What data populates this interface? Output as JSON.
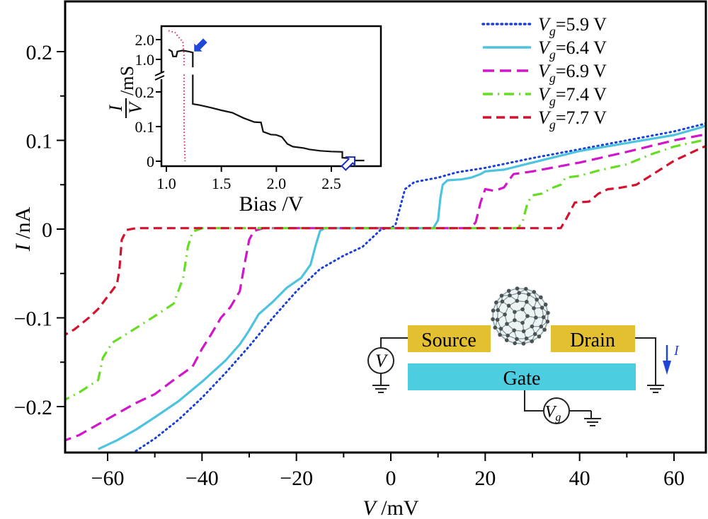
{
  "chart_data": [
    {
      "id": "main",
      "type": "line",
      "title": "",
      "xlabel": "V /mV",
      "ylabel": "I /nA",
      "xlim": [
        -70,
        70
      ],
      "ylim": [
        -0.25,
        0.25
      ],
      "x_ticks": [
        -60,
        -40,
        -20,
        0,
        20,
        40,
        60
      ],
      "x_tick_labels": [
        "−60",
        "−40",
        "−20",
        "0",
        "20",
        "40",
        "60"
      ],
      "x_minor_ticks": [
        -50,
        -30,
        -10,
        10,
        30,
        50
      ],
      "y_ticks": [
        -0.2,
        -0.1,
        0,
        0.1,
        0.2
      ],
      "y_tick_labels": [
        "−0.2",
        "−0.1",
        "0",
        "0.1",
        "0.2"
      ],
      "y_minor_ticks": [
        -0.15,
        -0.05,
        0.05,
        0.15
      ],
      "grid": false,
      "legend_position": "top-right",
      "series": [
        {
          "name": "Vg=5.9 V",
          "label_sub": "g",
          "label_value": "=5.9 V",
          "color": "#1a3fd6",
          "style": "dotted",
          "points": [
            [
              -54,
              -0.25
            ],
            [
              -50,
              -0.236
            ],
            [
              -45,
              -0.215
            ],
            [
              -40,
              -0.19
            ],
            [
              -35,
              -0.162
            ],
            [
              -30,
              -0.132
            ],
            [
              -25,
              -0.1
            ],
            [
              -20,
              -0.07
            ],
            [
              -15,
              -0.045
            ],
            [
              -10,
              -0.03
            ],
            [
              -6,
              -0.02
            ],
            [
              -4,
              -0.01
            ],
            [
              -2,
              0
            ],
            [
              0,
              0.001
            ],
            [
              1,
              0.005
            ],
            [
              2,
              0.025
            ],
            [
              3,
              0.045
            ],
            [
              5,
              0.053
            ],
            [
              8,
              0.056
            ],
            [
              10,
              0.058
            ],
            [
              14,
              0.064
            ],
            [
              20,
              0.069
            ],
            [
              30,
              0.08
            ],
            [
              40,
              0.09
            ],
            [
              50,
              0.1
            ],
            [
              60,
              0.11
            ],
            [
              66,
              0.118
            ],
            [
              70,
              0.125
            ]
          ]
        },
        {
          "name": "Vg=6.4 V",
          "label_sub": "g",
          "label_value": "=6.4 V",
          "color": "#4dc3e0",
          "style": "solid",
          "points": [
            [
              -62,
              -0.248
            ],
            [
              -58,
              -0.238
            ],
            [
              -54,
              -0.226
            ],
            [
              -50,
              -0.212
            ],
            [
              -45,
              -0.194
            ],
            [
              -40,
              -0.172
            ],
            [
              -35,
              -0.148
            ],
            [
              -32,
              -0.13
            ],
            [
              -30,
              -0.114
            ],
            [
              -28,
              -0.096
            ],
            [
              -25,
              -0.082
            ],
            [
              -22,
              -0.066
            ],
            [
              -19,
              -0.055
            ],
            [
              -17,
              -0.04
            ],
            [
              -16,
              -0.02
            ],
            [
              -15,
              -0.002
            ],
            [
              -14,
              0.001
            ],
            [
              -5,
              0.001
            ],
            [
              5,
              0.001
            ],
            [
              9,
              0.001
            ],
            [
              10,
              0.01
            ],
            [
              10.5,
              0.035
            ],
            [
              11,
              0.05
            ],
            [
              12,
              0.055
            ],
            [
              15,
              0.056
            ],
            [
              17,
              0.058
            ],
            [
              19,
              0.062
            ],
            [
              20,
              0.065
            ],
            [
              24,
              0.067
            ],
            [
              30,
              0.075
            ],
            [
              40,
              0.088
            ],
            [
              50,
              0.097
            ],
            [
              60,
              0.106
            ],
            [
              66,
              0.115
            ],
            [
              70,
              0.125
            ]
          ]
        },
        {
          "name": "Vg=6.9 V",
          "label_sub": "g",
          "label_value": "=6.9 V",
          "color": "#d016c8",
          "style": "dashed",
          "points": [
            [
              -70,
              -0.24
            ],
            [
              -66,
              -0.232
            ],
            [
              -62,
              -0.22
            ],
            [
              -58,
              -0.208
            ],
            [
              -54,
              -0.196
            ],
            [
              -50,
              -0.186
            ],
            [
              -46,
              -0.17
            ],
            [
              -42,
              -0.155
            ],
            [
              -40,
              -0.135
            ],
            [
              -38,
              -0.118
            ],
            [
              -36,
              -0.1
            ],
            [
              -34,
              -0.088
            ],
            [
              -32,
              -0.07
            ],
            [
              -31,
              -0.04
            ],
            [
              -30,
              -0.012
            ],
            [
              -29,
              -0.002
            ],
            [
              -27,
              0.001
            ],
            [
              -10,
              0.001
            ],
            [
              10,
              0.001
            ],
            [
              17,
              0.001
            ],
            [
              18,
              0.008
            ],
            [
              19,
              0.03
            ],
            [
              20,
              0.045
            ],
            [
              22,
              0.043
            ],
            [
              24,
              0.047
            ],
            [
              25,
              0.055
            ],
            [
              26,
              0.062
            ],
            [
              30,
              0.065
            ],
            [
              40,
              0.075
            ],
            [
              50,
              0.087
            ],
            [
              60,
              0.1
            ],
            [
              70,
              0.11
            ]
          ]
        },
        {
          "name": "Vg=7.4 V",
          "label_sub": "g",
          "label_value": "=7.4 V",
          "color": "#66dd22",
          "style": "dashdot",
          "points": [
            [
              -70,
              -0.195
            ],
            [
              -66,
              -0.184
            ],
            [
              -62,
              -0.17
            ],
            [
              -61,
              -0.145
            ],
            [
              -59,
              -0.128
            ],
            [
              -55,
              -0.115
            ],
            [
              -50,
              -0.098
            ],
            [
              -46,
              -0.084
            ],
            [
              -44,
              -0.055
            ],
            [
              -43,
              -0.02
            ],
            [
              -42,
              -0.003
            ],
            [
              -40,
              0.001
            ],
            [
              -10,
              0.001
            ],
            [
              20,
              0.001
            ],
            [
              27,
              0.001
            ],
            [
              28,
              0.01
            ],
            [
              29,
              0.03
            ],
            [
              30,
              0.038
            ],
            [
              32,
              0.04
            ],
            [
              34,
              0.046
            ],
            [
              36,
              0.05
            ],
            [
              37,
              0.058
            ],
            [
              40,
              0.06
            ],
            [
              44,
              0.066
            ],
            [
              50,
              0.073
            ],
            [
              55,
              0.084
            ],
            [
              60,
              0.093
            ],
            [
              66,
              0.1
            ],
            [
              70,
              0.106
            ]
          ]
        },
        {
          "name": "Vg=7.7 V",
          "label_sub": "g",
          "label_value": "=7.7 V",
          "color": "#d4122d",
          "style": "dashed-short",
          "points": [
            [
              -70,
              -0.122
            ],
            [
              -67,
              -0.113
            ],
            [
              -64,
              -0.1
            ],
            [
              -62,
              -0.09
            ],
            [
              -60,
              -0.076
            ],
            [
              -58,
              -0.062
            ],
            [
              -57.5,
              -0.045
            ],
            [
              -57,
              -0.012
            ],
            [
              -56,
              -0.001
            ],
            [
              -54,
              0.001
            ],
            [
              -30,
              0.001
            ],
            [
              0,
              0.001
            ],
            [
              20,
              0.001
            ],
            [
              36,
              0.001
            ],
            [
              37,
              0.01
            ],
            [
              38,
              0.02
            ],
            [
              39,
              0.03
            ],
            [
              42,
              0.031
            ],
            [
              44,
              0.04
            ],
            [
              46,
              0.045
            ],
            [
              48,
              0.046
            ],
            [
              52,
              0.05
            ],
            [
              55,
              0.06
            ],
            [
              60,
              0.077
            ],
            [
              66,
              0.092
            ],
            [
              70,
              0.1
            ]
          ]
        }
      ]
    },
    {
      "id": "inset",
      "type": "line",
      "title": "",
      "xlabel": "Bias /V",
      "ylabel": "I/V /mS",
      "ylabel_numerator": "I",
      "ylabel_denominator": "V",
      "ylabel_unit": "/mS",
      "xlim": [
        0.97,
        2.95
      ],
      "x_ticks": [
        1.0,
        1.5,
        2.0,
        2.5
      ],
      "x_tick_labels": [
        "1.0",
        "1.5",
        "2.0",
        "2.5"
      ],
      "y_lower_range": [
        0,
        0.27
      ],
      "y_upper_range": [
        0.5,
        2.6
      ],
      "y_ticks_lower": [
        0,
        0.1,
        0.2
      ],
      "y_tick_labels_lower": [
        "0",
        "0.1",
        "0.2"
      ],
      "y_ticks_upper": [
        1.0,
        2.0
      ],
      "y_tick_labels_upper": [
        "1.0",
        "2.0"
      ],
      "axis_break": true,
      "series": [
        {
          "name": "black trace",
          "color": "#111111",
          "style": "solid",
          "points_upper": [
            [
              1.02,
              1.5
            ],
            [
              1.05,
              1.4
            ],
            [
              1.06,
              1.15
            ],
            [
              1.09,
              1.15
            ],
            [
              1.1,
              1.4
            ],
            [
              1.15,
              1.45
            ],
            [
              1.2,
              1.4
            ],
            [
              1.24,
              1.35
            ],
            [
              1.24,
              0.6
            ]
          ],
          "points_lower": [
            [
              1.24,
              0.25
            ],
            [
              1.24,
              0.165
            ],
            [
              1.3,
              0.162
            ],
            [
              1.4,
              0.155
            ],
            [
              1.5,
              0.147
            ],
            [
              1.6,
              0.14
            ],
            [
              1.7,
              0.125
            ],
            [
              1.8,
              0.113
            ],
            [
              1.86,
              0.112
            ],
            [
              1.88,
              0.085
            ],
            [
              1.95,
              0.077
            ],
            [
              2.0,
              0.076
            ],
            [
              2.05,
              0.07
            ],
            [
              2.1,
              0.05
            ],
            [
              2.15,
              0.042
            ],
            [
              2.25,
              0.038
            ],
            [
              2.3,
              0.034
            ],
            [
              2.4,
              0.03
            ],
            [
              2.5,
              0.028
            ],
            [
              2.6,
              0.027
            ],
            [
              2.6,
              0.01
            ],
            [
              2.7,
              0.008
            ],
            [
              2.72,
              0.002
            ],
            [
              2.8,
              0.002
            ]
          ]
        },
        {
          "name": "red dotted trace",
          "color": "#e0206a",
          "style": "dotted",
          "points_upper": [
            [
              1.02,
              2.45
            ],
            [
              1.05,
              2.4
            ],
            [
              1.08,
              2.35
            ],
            [
              1.1,
              2.2
            ],
            [
              1.13,
              2.0
            ],
            [
              1.15,
              1.9
            ],
            [
              1.16,
              1.2
            ],
            [
              1.16,
              0.6
            ]
          ],
          "points_lower": [
            [
              1.16,
              0.25
            ],
            [
              1.16,
              0.1
            ],
            [
              1.17,
              0.0
            ]
          ]
        }
      ],
      "annotations": [
        {
          "type": "arrow-filled",
          "color": "#1f47d6",
          "points_to": [
            1.24,
            1.4
          ]
        },
        {
          "type": "arrow-outline",
          "color": "#1a2bb8",
          "points_to": [
            2.7,
            0.008
          ]
        }
      ]
    }
  ],
  "diagram": {
    "source_label": "Source",
    "drain_label": "Drain",
    "gate_label": "Gate",
    "voltmeter_label": "V",
    "gate_source_label": "V",
    "gate_source_sub": "g",
    "current_label": "I",
    "electrode_color": "#e3c030",
    "gate_color": "#4ccde0",
    "arrow_color": "#1f47d6",
    "molecule": "C60 fullerene"
  }
}
